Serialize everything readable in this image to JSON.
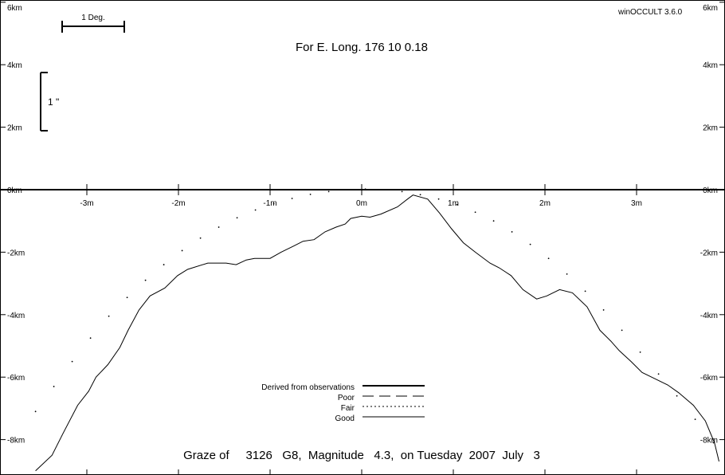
{
  "app_label": "winOCCULT 3.6.0",
  "header": "For E. Long.  176 10  0.18",
  "footer": "Graze of     3126   G8,  Magnitude   4.3,  on Tuesday  2007  July   3",
  "scale_bars": {
    "degree": "1 Deg.",
    "arcsec": "1 \""
  },
  "legend": [
    {
      "label": "Derived from observations",
      "style": "thick"
    },
    {
      "label": "Poor",
      "style": "dashed"
    },
    {
      "label": "Fair",
      "style": "dotted"
    },
    {
      "label": "Good",
      "style": "solid"
    }
  ],
  "chart_data": {
    "type": "line",
    "title": "Graze of     3126   G8,  Magnitude   4.3,  on Tuesday  2007  July   3",
    "xlim": [
      -3.95,
      3.95
    ],
    "ylim": [
      -9,
      6
    ],
    "x_ticks": [
      {
        "value": -3,
        "label": "-3m"
      },
      {
        "value": -2,
        "label": "-2m"
      },
      {
        "value": -1,
        "label": "-1m"
      },
      {
        "value": 0,
        "label": "0m"
      },
      {
        "value": 1,
        "label": "1m"
      },
      {
        "value": 2,
        "label": "2m"
      },
      {
        "value": 3,
        "label": "3m"
      }
    ],
    "y_ticks": [
      {
        "value": 6,
        "label": "6km"
      },
      {
        "value": 4,
        "label": "4km"
      },
      {
        "value": 2,
        "label": "2km"
      },
      {
        "value": 0,
        "label": "0km"
      },
      {
        "value": -2,
        "label": "-2km"
      },
      {
        "value": -4,
        "label": "-4km"
      },
      {
        "value": -6,
        "label": "-6km"
      },
      {
        "value": -8,
        "label": "-8km"
      }
    ],
    "series": [
      {
        "name": "Good",
        "style": "solid",
        "x": [
          -3.56,
          -3.38,
          -3.26,
          -3.1,
          -2.98,
          -2.9,
          -2.77,
          -2.64,
          -2.55,
          -2.43,
          -2.31,
          -2.15,
          -2.01,
          -1.9,
          -1.68,
          -1.48,
          -1.37,
          -1.26,
          -1.17,
          -1.0,
          -0.88,
          -0.74,
          -0.64,
          -0.52,
          -0.4,
          -0.28,
          -0.18,
          -0.12,
          0.0,
          0.09,
          0.21,
          0.39,
          0.5,
          0.56,
          0.72,
          0.85,
          0.98,
          1.11,
          1.24,
          1.4,
          1.5,
          1.63,
          1.76,
          1.91,
          2.02,
          2.16,
          2.3,
          2.46,
          2.6,
          2.72,
          2.81,
          2.94,
          3.06,
          3.2,
          3.34,
          3.46,
          3.62,
          3.75,
          3.85,
          3.9
        ],
        "y": [
          -9.0,
          -8.5,
          -7.8,
          -6.9,
          -6.45,
          -6.0,
          -5.6,
          -5.05,
          -4.5,
          -3.85,
          -3.4,
          -3.15,
          -2.75,
          -2.55,
          -2.35,
          -2.35,
          -2.4,
          -2.25,
          -2.2,
          -2.2,
          -2.0,
          -1.8,
          -1.65,
          -1.6,
          -1.35,
          -1.2,
          -1.1,
          -0.92,
          -0.85,
          -0.88,
          -0.78,
          -0.55,
          -0.3,
          -0.17,
          -0.3,
          -0.75,
          -1.25,
          -1.7,
          -2.0,
          -2.35,
          -2.5,
          -2.75,
          -3.2,
          -3.5,
          -3.4,
          -3.2,
          -3.3,
          -3.75,
          -4.5,
          -4.85,
          -5.15,
          -5.5,
          -5.85,
          -6.05,
          -6.25,
          -6.5,
          -6.9,
          -7.4,
          -8.1,
          -8.7
        ]
      },
      {
        "name": "Fair",
        "style": "dotted",
        "x": [
          -3.56,
          -3.36,
          -3.16,
          -2.96,
          -2.76,
          -2.56,
          -2.36,
          -2.16,
          -1.96,
          -1.76,
          -1.56,
          -1.36,
          -1.16,
          -0.96,
          -0.76,
          -0.56,
          -0.36,
          -0.16,
          0.04,
          0.24,
          0.44,
          0.64,
          0.84,
          1.04,
          1.24,
          1.44,
          1.64,
          1.84,
          2.04,
          2.24,
          2.44,
          2.64,
          2.84,
          3.04,
          3.24,
          3.44,
          3.64,
          3.84
        ],
        "y": [
          -7.1,
          -6.3,
          -5.5,
          -4.75,
          -4.05,
          -3.45,
          -2.9,
          -2.4,
          -1.95,
          -1.55,
          -1.2,
          -0.9,
          -0.65,
          -0.45,
          -0.28,
          -0.15,
          -0.06,
          0.0,
          0.02,
          0.0,
          -0.06,
          -0.16,
          -0.3,
          -0.48,
          -0.72,
          -1.0,
          -1.35,
          -1.75,
          -2.2,
          -2.7,
          -3.25,
          -3.85,
          -4.5,
          -5.2,
          -5.9,
          -6.6,
          -7.35,
          -8.1
        ]
      }
    ]
  }
}
